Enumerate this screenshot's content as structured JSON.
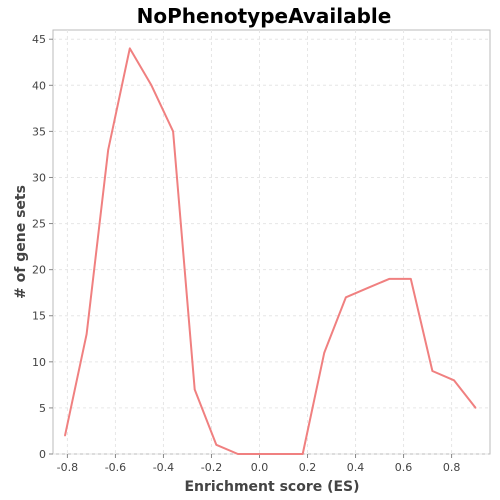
{
  "chart_data": {
    "type": "line",
    "title": "NoPhenotypeAvailable",
    "xlabel": "Enrichment score (ES)",
    "ylabel": "# of gene sets",
    "xlim": [
      -0.86,
      0.96
    ],
    "ylim": [
      0,
      46
    ],
    "x_ticks": [
      -0.8,
      -0.6,
      -0.4,
      -0.2,
      0.0,
      0.2,
      0.4,
      0.6,
      0.8
    ],
    "x_tick_labels": [
      "-0.8",
      "-0.6",
      "-0.4",
      "-0.2",
      "0.0",
      "0.2",
      "0.4",
      "0.6",
      "0.8"
    ],
    "y_ticks": [
      0,
      5,
      10,
      15,
      20,
      25,
      30,
      35,
      40,
      45
    ],
    "y_tick_labels": [
      "0",
      "5",
      "10",
      "15",
      "20",
      "25",
      "30",
      "35",
      "40",
      "45"
    ],
    "grid": true,
    "legend": "none",
    "series": [
      {
        "color": "#f08080",
        "x": [
          -0.81,
          -0.72,
          -0.63,
          -0.54,
          -0.45,
          -0.36,
          -0.27,
          -0.18,
          -0.09,
          0.0,
          0.09,
          0.18,
          0.27,
          0.36,
          0.45,
          0.54,
          0.63,
          0.72,
          0.81,
          0.9
        ],
        "y": [
          2,
          13,
          33,
          44,
          40,
          35,
          7,
          1,
          0,
          0,
          0,
          0,
          11,
          17,
          18,
          19,
          19,
          9,
          8,
          5
        ]
      }
    ]
  }
}
